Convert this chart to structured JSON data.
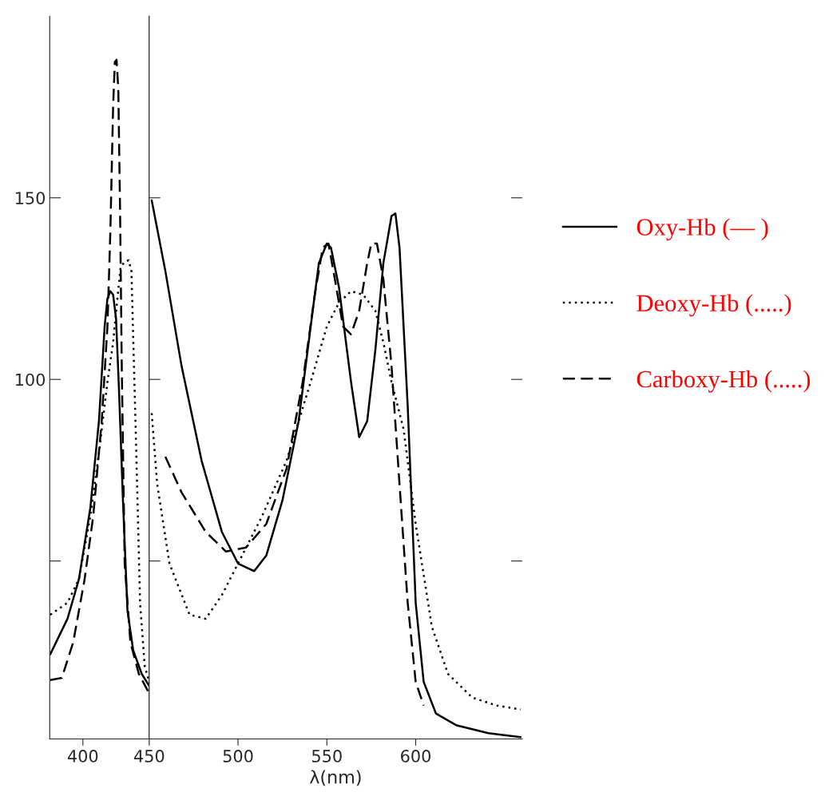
{
  "chart_data": [
    {
      "type": "line",
      "xlim": [
        375,
        450
      ],
      "xticks": [
        400,
        450
      ],
      "ylim": [
        1,
        200
      ],
      "yticks": [
        {
          "value": 50,
          "label": null
        },
        100,
        150
      ],
      "grid": false,
      "legend": false,
      "series": [
        {
          "color": "#000000",
          "line_style": "solid",
          "x": [
            375.4,
            388.4,
            397,
            405.6,
            412.1,
            416.4,
            418.5,
            420.7,
            422.8,
            425,
            427.2,
            430.2,
            433.6,
            437.9,
            444.4,
            450
          ],
          "values": [
            24.3,
            34.1,
            45,
            64.6,
            88.5,
            114.6,
            122.2,
            124.3,
            123.3,
            116.7,
            97.2,
            66.7,
            36.3,
            25.4,
            18.9,
            15.6
          ]
        },
        {
          "color": "#000000",
          "line_style": "dotted",
          "x": [
            375.4,
            388.4,
            397,
            405.6,
            412.1,
            418.5,
            422.8,
            426.3,
            428.4,
            431.5,
            434.5,
            436.6,
            440.1,
            443.1,
            446.6,
            450
          ],
          "values": [
            35.2,
            38.5,
            45,
            62.4,
            79.8,
            99.3,
            110.2,
            123.3,
            130.9,
            132.4,
            132.8,
            129.8,
            82,
            38.5,
            21.1,
            16.7
          ]
        },
        {
          "color": "#000000",
          "line_style": "dashed",
          "x": [
            375.4,
            384.1,
            392.7,
            401.3,
            407.8,
            414.2,
            418.5,
            420.7,
            422.8,
            424.1,
            425.4,
            426.7,
            428,
            429.3,
            431.5,
            435.8,
            442.2,
            450
          ],
          "values": [
            17.2,
            17.8,
            27.6,
            45,
            62.4,
            88.5,
            114.6,
            140.7,
            175.4,
            187.4,
            188,
            179.8,
            147.2,
            103.7,
            49.3,
            27.6,
            18.9,
            13.5
          ]
        }
      ]
    },
    {
      "type": "line",
      "xlabel": "λ(nm)",
      "xlim": [
        450,
        660
      ],
      "xticks": [
        500,
        550,
        600
      ],
      "ylim": [
        1,
        200
      ],
      "yticks": [
        50,
        100,
        150
      ],
      "tick_labels": "x",
      "grid": false,
      "legend": "right",
      "series": [
        {
          "name": "Oxy-Hb (— )",
          "color": "#000000",
          "line_style": "solid",
          "x": [
            451.4,
            459.1,
            468.2,
            479.5,
            490.9,
            500,
            509.1,
            515.9,
            525,
            534.1,
            540.9,
            545.5,
            550,
            552.3,
            556.8,
            563.6,
            568.2,
            572.7,
            577.3,
            581.8,
            586.4,
            588.6,
            590.9,
            595.5,
            600,
            604.5,
            611.4,
            622.7,
            640.9,
            659.1
          ],
          "values": [
            149.3,
            129.8,
            103.7,
            77.6,
            58,
            49.3,
            47.2,
            51.5,
            66.7,
            88.5,
            114.6,
            132,
            137.4,
            136.3,
            125.4,
            99.3,
            84.1,
            88.5,
            108.1,
            132,
            145,
            145.7,
            136.3,
            92.8,
            38.5,
            16.7,
            8,
            4.8,
            2.6,
            1.5
          ]
        },
        {
          "name": "Deoxy-Hb (.....)",
          "color": "#000000",
          "line_style": "dotted",
          "x": [
            451.4,
            454.5,
            461.4,
            472.7,
            481.8,
            490.9,
            500,
            513.6,
            527.3,
            540.9,
            550,
            556.8,
            563.6,
            570.5,
            577.3,
            581.8,
            586.4,
            593.2,
            600,
            609.1,
            618.2,
            631.8,
            645.5,
            659.1
          ],
          "values": [
            90.7,
            71.1,
            49.3,
            35.2,
            34.1,
            40.6,
            49.3,
            62.4,
            77.6,
            99.3,
            114.6,
            121.1,
            124.3,
            123.3,
            118.9,
            110.2,
            99.3,
            86.3,
            60.2,
            31.9,
            18.9,
            12.4,
            10.2,
            9.1
          ]
        },
        {
          "name": "Carboxy-Hb (.....)",
          "color": "#000000",
          "line_style": "dashed",
          "x": [
            459.1,
            468.2,
            481.8,
            493.2,
            504.5,
            515.9,
            527.3,
            536.4,
            543.2,
            547.7,
            550.9,
            554.5,
            559.1,
            563.6,
            568.2,
            572.7,
            575,
            578.2,
            581.8,
            586.4,
            590.9,
            595.5,
            600,
            604.5
          ],
          "values": [
            78.7,
            68.9,
            58,
            52.6,
            53.7,
            60.2,
            75.4,
            99.3,
            123.3,
            136.3,
            137.4,
            127.6,
            114.6,
            112.4,
            118.9,
            132,
            137.4,
            137.4,
            127.6,
            103.7,
            71.1,
            38.5,
            16.7,
            10.2
          ]
        }
      ]
    }
  ]
}
